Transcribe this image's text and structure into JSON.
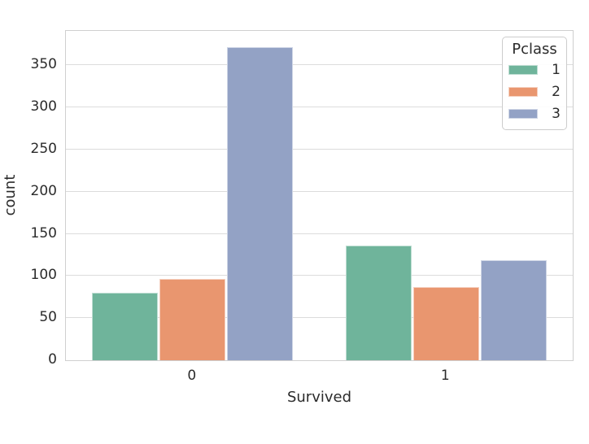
{
  "chart_data": {
    "type": "bar",
    "title": "",
    "xlabel": "Survived",
    "ylabel": "count",
    "categories": [
      "0",
      "1"
    ],
    "series": [
      {
        "name": "1",
        "color": "#6fb49b",
        "values": [
          80,
          136
        ]
      },
      {
        "name": "2",
        "color": "#e9966f",
        "values": [
          97,
          87
        ]
      },
      {
        "name": "3",
        "color": "#93a2c5",
        "values": [
          372,
          119
        ]
      }
    ],
    "legend_title": "Pclass",
    "legend_position": "upper right",
    "yticks": [
      0,
      50,
      100,
      150,
      200,
      250,
      300,
      350
    ],
    "ylim": [
      0,
      391
    ],
    "grid": true,
    "group_width_fraction": 0.8,
    "style": {
      "grid_color": "#dcdcdc",
      "spine_color": "#cfcfcf",
      "text_color": "#2b2b2b",
      "background": "#ffffff"
    }
  }
}
